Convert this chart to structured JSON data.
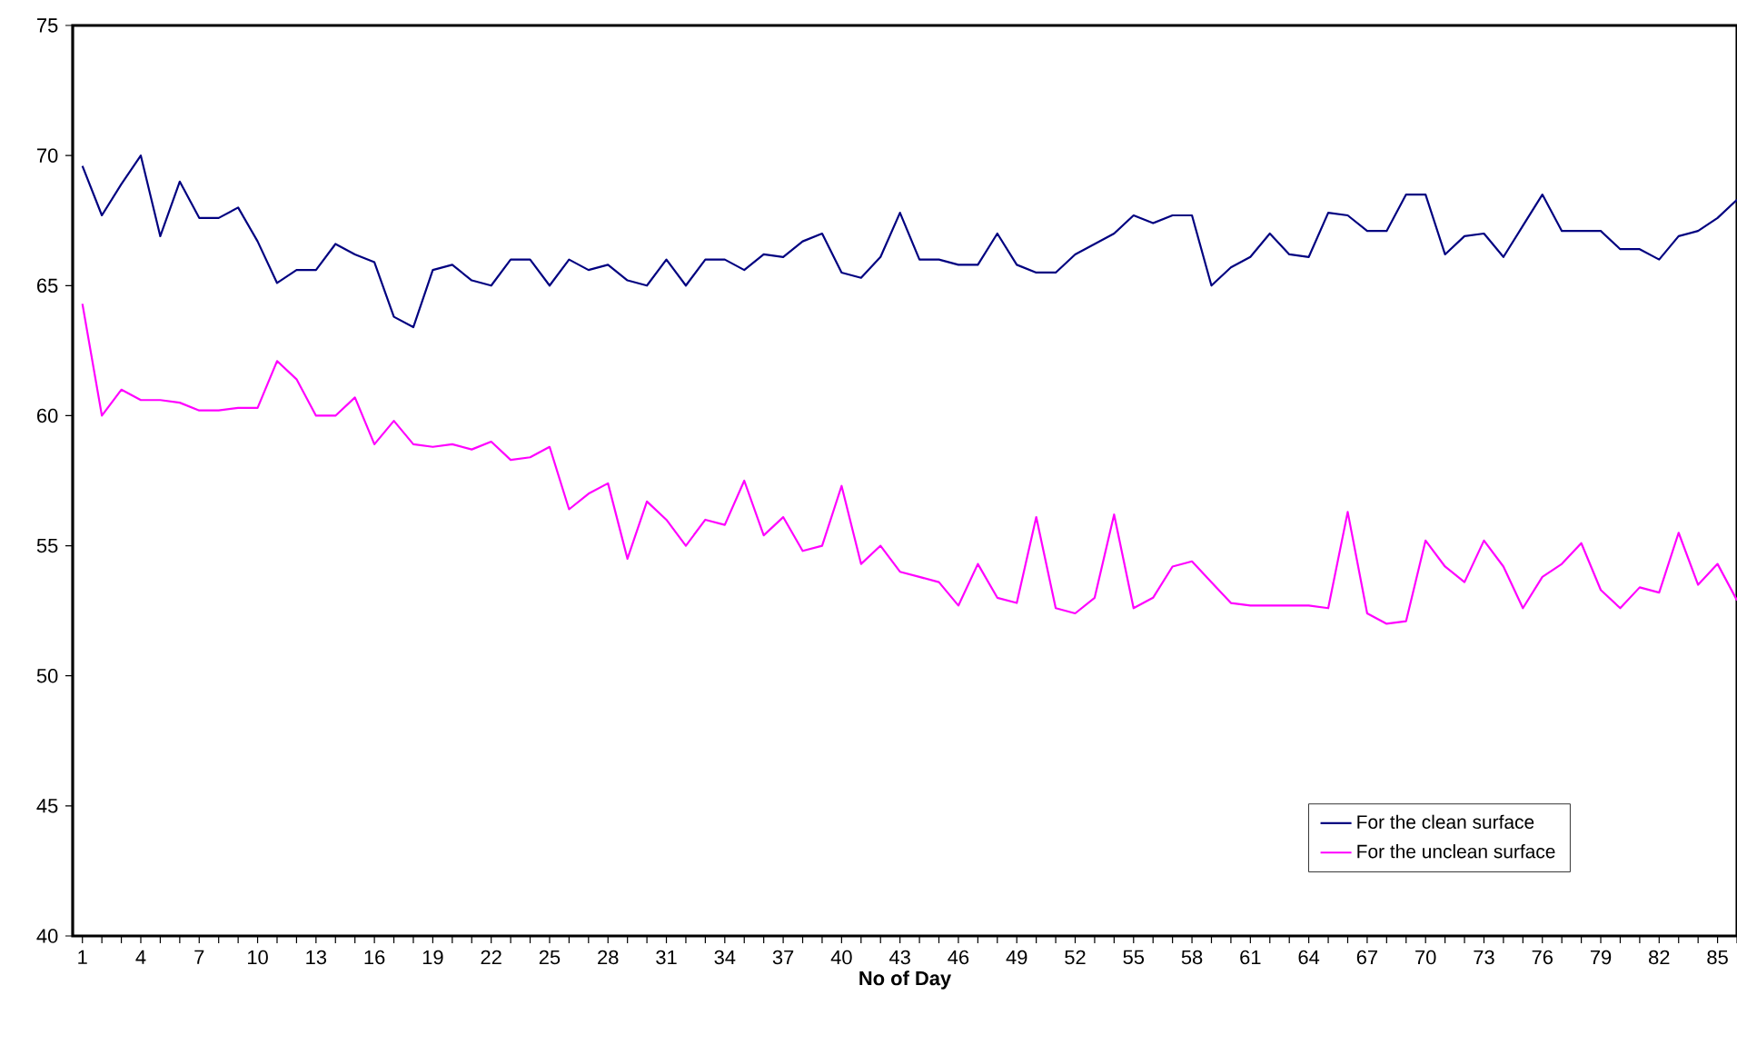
{
  "chart_data": {
    "type": "line",
    "xlabel": "No of Day",
    "categories": [
      "1",
      null,
      null,
      "4",
      null,
      null,
      "7",
      null,
      null,
      "10",
      null,
      null,
      "13",
      null,
      null,
      "16",
      null,
      null,
      "19",
      null,
      null,
      "22",
      null,
      null,
      "25",
      null,
      null,
      "28",
      null,
      null,
      "31",
      null,
      null,
      "34",
      null,
      null,
      "37",
      null,
      null,
      "40",
      null,
      null,
      "43",
      null,
      null,
      "46",
      null,
      null,
      "49",
      null,
      null,
      "52",
      null,
      null,
      "55",
      null,
      null,
      "58",
      null,
      null,
      "61",
      null,
      null,
      "64",
      null,
      null,
      "67",
      null,
      null,
      "70",
      null,
      null,
      "73",
      null,
      null,
      "76",
      null,
      null,
      "79",
      null,
      null,
      "82",
      null,
      null,
      "85",
      null
    ],
    "ylim": [
      40,
      75
    ],
    "yticks": [
      40,
      45,
      50,
      55,
      60,
      65,
      70,
      75
    ],
    "grid": false,
    "legend": "bottom right",
    "marker": "none",
    "line_style": "solid",
    "series": [
      {
        "name": "For the clean surface",
        "color": "#000080",
        "values": [
          69.6,
          67.7,
          68.9,
          70.0,
          66.9,
          69.0,
          67.6,
          67.6,
          68.0,
          66.7,
          65.1,
          65.6,
          65.6,
          66.6,
          66.2,
          65.9,
          63.8,
          63.4,
          65.6,
          65.8,
          65.2,
          65.0,
          66.0,
          66.0,
          65.0,
          66.0,
          65.6,
          65.8,
          65.2,
          65.0,
          66.0,
          65.0,
          66.0,
          66.0,
          65.6,
          66.2,
          66.1,
          66.7,
          67.0,
          65.5,
          65.3,
          66.1,
          67.8,
          66.0,
          66.0,
          65.8,
          65.8,
          67.0,
          65.8,
          65.5,
          65.5,
          66.2,
          66.6,
          67.0,
          67.7,
          67.4,
          67.7,
          67.7,
          65.0,
          65.7,
          66.1,
          67.0,
          66.2,
          66.1,
          67.8,
          67.7,
          67.1,
          67.1,
          68.5,
          68.5,
          66.2,
          66.9,
          67.0,
          66.1,
          67.3,
          68.5,
          67.1,
          67.1,
          67.1,
          66.4,
          66.4,
          66.0,
          66.9,
          67.1,
          67.6,
          68.3
        ]
      },
      {
        "name": "For the unclean surface",
        "color": "#ff00ff",
        "values": [
          64.3,
          60.0,
          61.0,
          60.6,
          60.6,
          60.5,
          60.2,
          60.2,
          60.3,
          60.3,
          62.1,
          61.4,
          60.0,
          60.0,
          60.7,
          58.9,
          59.8,
          58.9,
          58.8,
          58.9,
          58.7,
          59.0,
          58.3,
          58.4,
          58.8,
          56.4,
          57.0,
          57.4,
          54.5,
          56.7,
          56.0,
          55.0,
          56.0,
          55.8,
          57.5,
          55.4,
          56.1,
          54.8,
          55.0,
          57.3,
          54.3,
          55.0,
          54.0,
          53.8,
          53.6,
          52.7,
          54.3,
          53.0,
          52.8,
          56.1,
          52.6,
          52.4,
          53.0,
          56.2,
          52.6,
          53.0,
          54.2,
          54.4,
          53.6,
          52.8,
          52.7,
          52.7,
          52.7,
          52.7,
          52.6,
          56.3,
          52.4,
          52.0,
          52.1,
          55.2,
          54.2,
          53.6,
          55.2,
          54.2,
          52.6,
          53.8,
          54.3,
          55.1,
          53.3,
          52.6,
          53.4,
          53.2,
          55.5,
          53.5,
          54.3,
          52.9
        ]
      }
    ]
  }
}
